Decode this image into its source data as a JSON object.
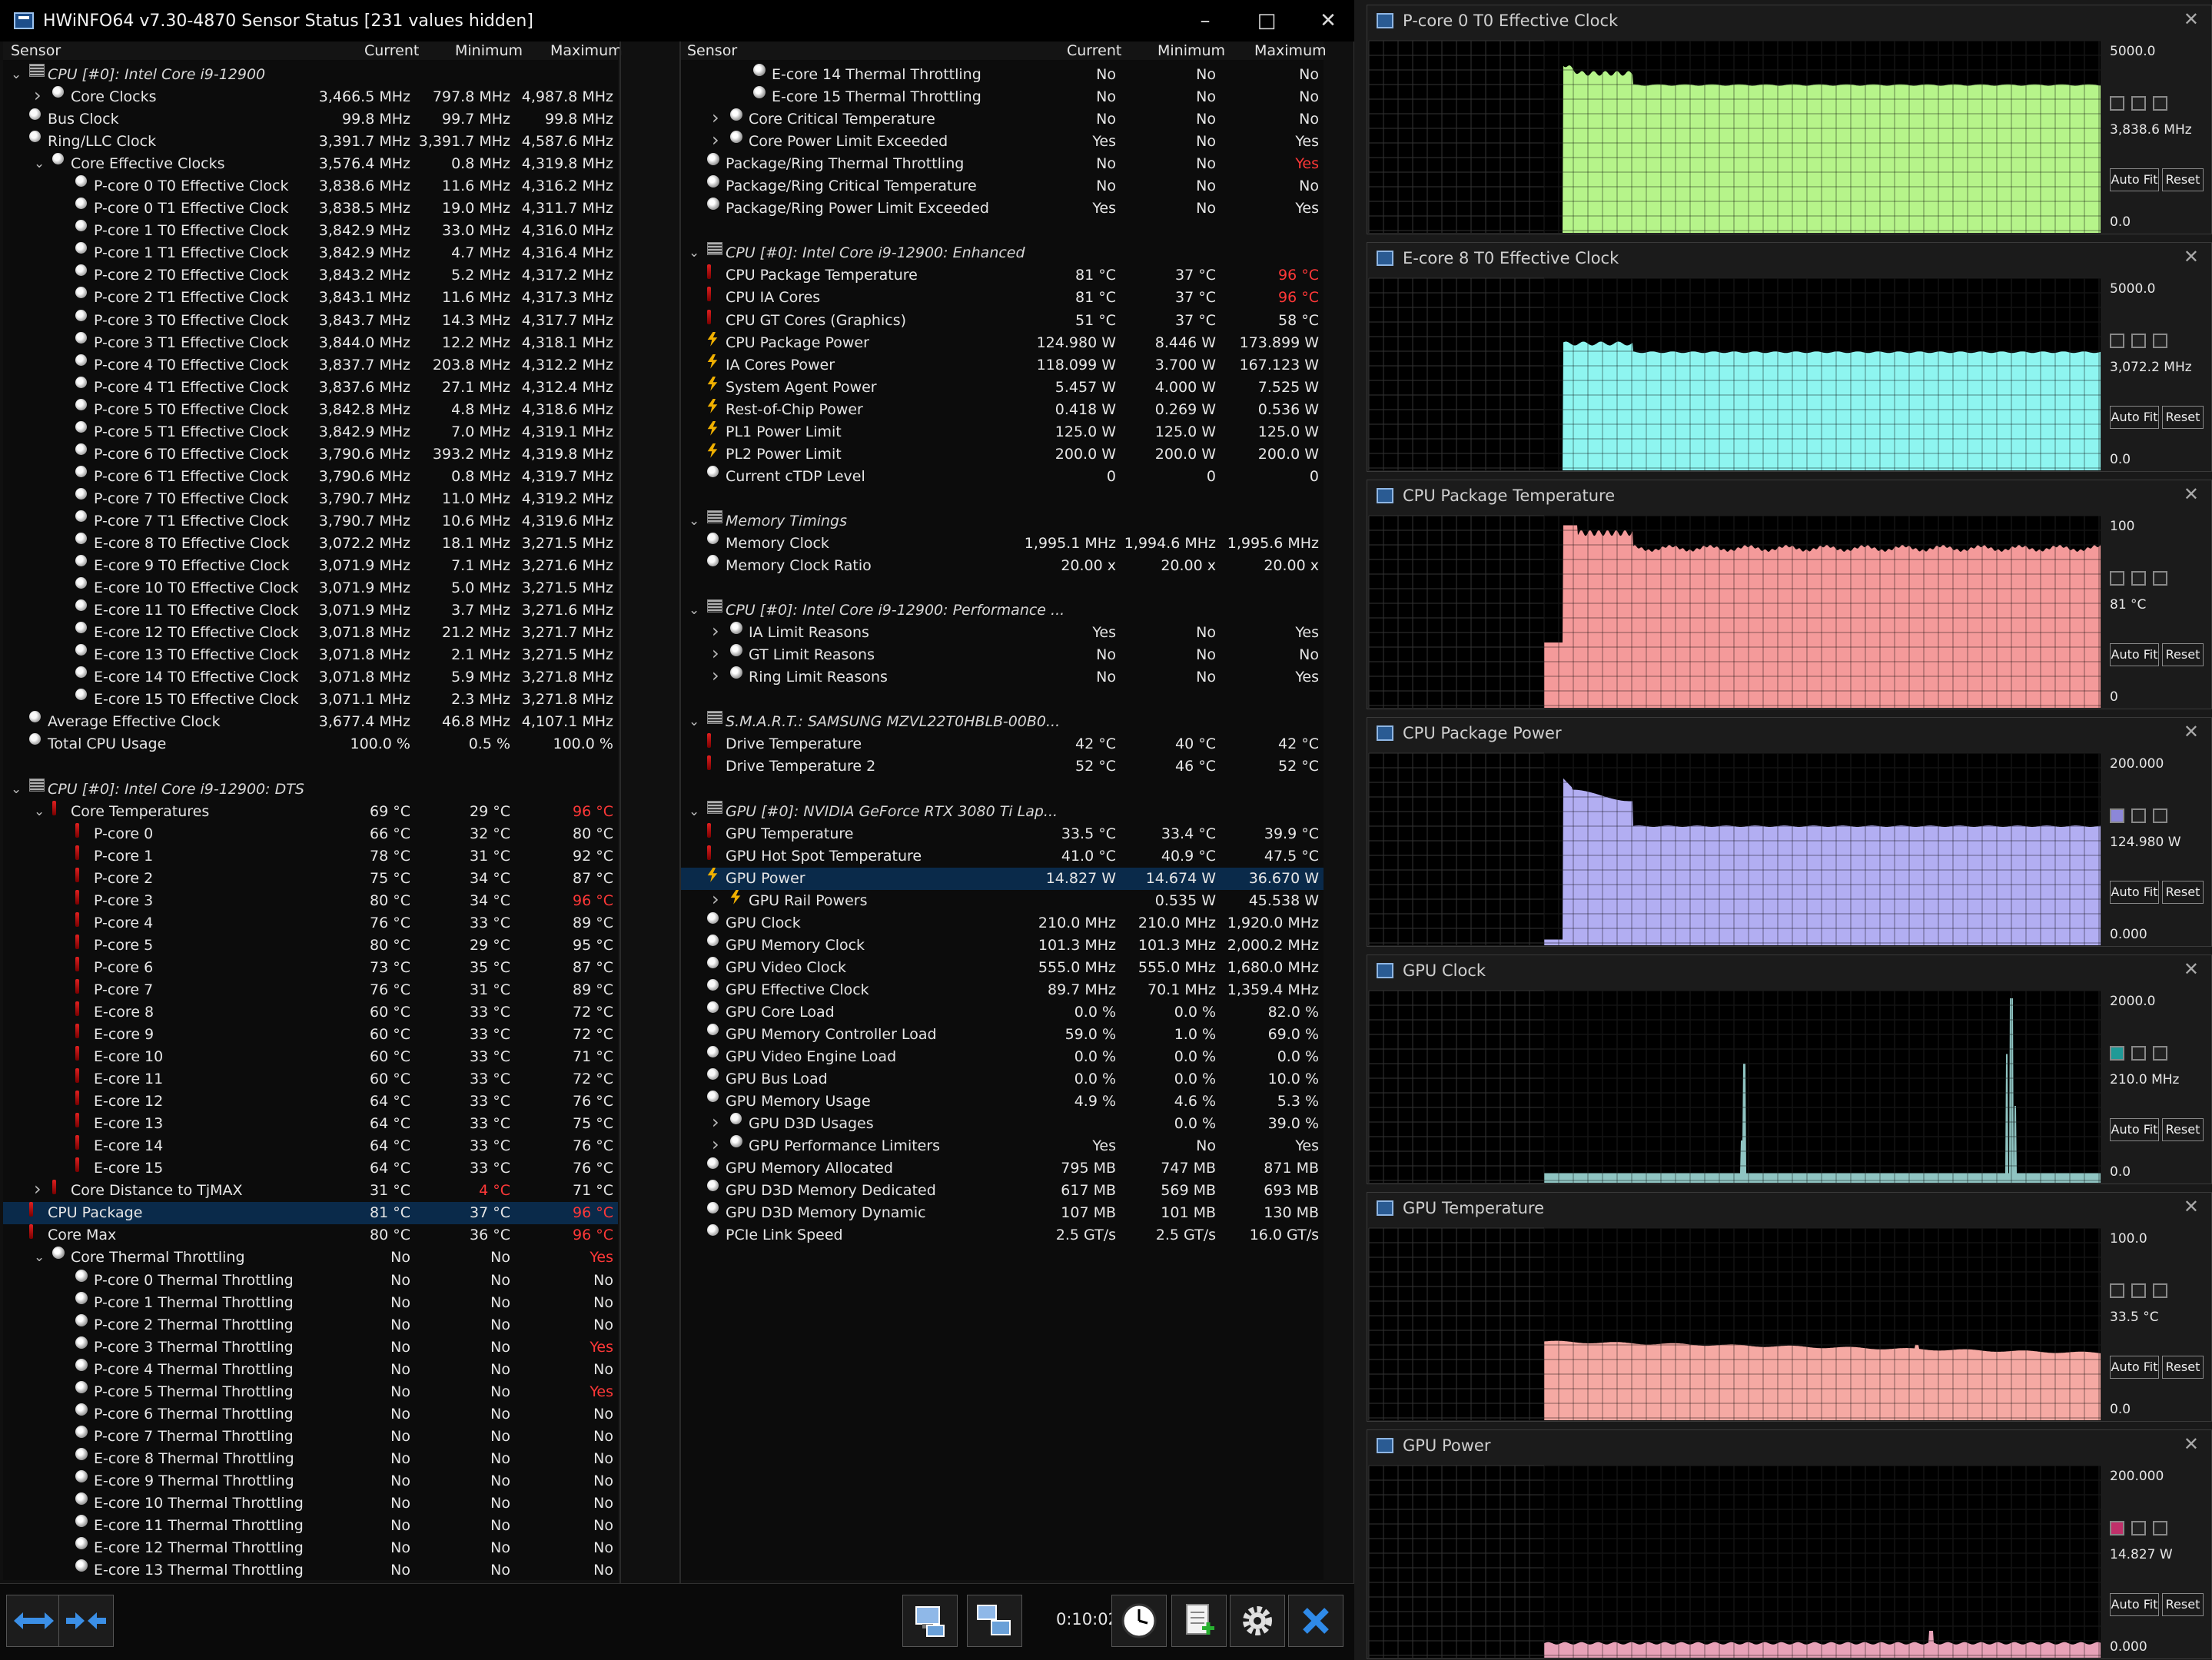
{
  "window": {
    "title": "HWiNFO64 v7.30-4870 Sensor Status [231 values hidden]"
  },
  "columns": {
    "sensor": "Sensor",
    "current": "Current",
    "minimum": "Minimum",
    "maximum": "Maximum"
  },
  "left_rows": [
    {
      "t": "grp",
      "a": "v",
      "ind": 0,
      "name": "CPU [#0]: Intel Core i9-12900"
    },
    {
      "t": "clock",
      "a": ">",
      "ind": 1,
      "name": "Core Clocks",
      "cur": "3,466.5 MHz",
      "min": "797.8 MHz",
      "max": "4,987.8 MHz"
    },
    {
      "t": "clock",
      "ind": 0,
      "name": "Bus Clock",
      "cur": "99.8 MHz",
      "min": "99.7 MHz",
      "max": "99.8 MHz"
    },
    {
      "t": "clock",
      "ind": 0,
      "name": "Ring/LLC Clock",
      "cur": "3,391.7 MHz",
      "min": "3,391.7 MHz",
      "max": "4,587.6 MHz"
    },
    {
      "t": "clock",
      "a": "v",
      "ind": 1,
      "name": "Core Effective Clocks",
      "cur": "3,576.4 MHz",
      "min": "0.8 MHz",
      "max": "4,319.8 MHz"
    },
    {
      "t": "clock",
      "ind": 2,
      "name": "P-core 0 T0 Effective Clock",
      "cur": "3,838.6 MHz",
      "min": "11.6 MHz",
      "max": "4,316.2 MHz"
    },
    {
      "t": "clock",
      "ind": 2,
      "name": "P-core 0 T1 Effective Clock",
      "cur": "3,838.5 MHz",
      "min": "19.0 MHz",
      "max": "4,311.7 MHz"
    },
    {
      "t": "clock",
      "ind": 2,
      "name": "P-core 1 T0 Effective Clock",
      "cur": "3,842.9 MHz",
      "min": "33.0 MHz",
      "max": "4,316.0 MHz"
    },
    {
      "t": "clock",
      "ind": 2,
      "name": "P-core 1 T1 Effective Clock",
      "cur": "3,842.9 MHz",
      "min": "4.7 MHz",
      "max": "4,316.4 MHz"
    },
    {
      "t": "clock",
      "ind": 2,
      "name": "P-core 2 T0 Effective Clock",
      "cur": "3,843.2 MHz",
      "min": "5.2 MHz",
      "max": "4,317.2 MHz"
    },
    {
      "t": "clock",
      "ind": 2,
      "name": "P-core 2 T1 Effective Clock",
      "cur": "3,843.1 MHz",
      "min": "11.6 MHz",
      "max": "4,317.3 MHz"
    },
    {
      "t": "clock",
      "ind": 2,
      "name": "P-core 3 T0 Effective Clock",
      "cur": "3,843.7 MHz",
      "min": "14.3 MHz",
      "max": "4,317.7 MHz"
    },
    {
      "t": "clock",
      "ind": 2,
      "name": "P-core 3 T1 Effective Clock",
      "cur": "3,844.0 MHz",
      "min": "12.2 MHz",
      "max": "4,318.1 MHz"
    },
    {
      "t": "clock",
      "ind": 2,
      "name": "P-core 4 T0 Effective Clock",
      "cur": "3,837.7 MHz",
      "min": "203.8 MHz",
      "max": "4,312.2 MHz"
    },
    {
      "t": "clock",
      "ind": 2,
      "name": "P-core 4 T1 Effective Clock",
      "cur": "3,837.6 MHz",
      "min": "27.1 MHz",
      "max": "4,312.4 MHz"
    },
    {
      "t": "clock",
      "ind": 2,
      "name": "P-core 5 T0 Effective Clock",
      "cur": "3,842.8 MHz",
      "min": "4.8 MHz",
      "max": "4,318.6 MHz"
    },
    {
      "t": "clock",
      "ind": 2,
      "name": "P-core 5 T1 Effective Clock",
      "cur": "3,842.9 MHz",
      "min": "7.0 MHz",
      "max": "4,319.1 MHz"
    },
    {
      "t": "clock",
      "ind": 2,
      "name": "P-core 6 T0 Effective Clock",
      "cur": "3,790.6 MHz",
      "min": "393.2 MHz",
      "max": "4,319.8 MHz"
    },
    {
      "t": "clock",
      "ind": 2,
      "name": "P-core 6 T1 Effective Clock",
      "cur": "3,790.6 MHz",
      "min": "0.8 MHz",
      "max": "4,319.7 MHz"
    },
    {
      "t": "clock",
      "ind": 2,
      "name": "P-core 7 T0 Effective Clock",
      "cur": "3,790.7 MHz",
      "min": "11.0 MHz",
      "max": "4,319.2 MHz"
    },
    {
      "t": "clock",
      "ind": 2,
      "name": "P-core 7 T1 Effective Clock",
      "cur": "3,790.7 MHz",
      "min": "10.6 MHz",
      "max": "4,319.6 MHz"
    },
    {
      "t": "clock",
      "ind": 2,
      "name": "E-core 8 T0 Effective Clock",
      "cur": "3,072.2 MHz",
      "min": "18.1 MHz",
      "max": "3,271.5 MHz"
    },
    {
      "t": "clock",
      "ind": 2,
      "name": "E-core 9 T0 Effective Clock",
      "cur": "3,071.9 MHz",
      "min": "7.1 MHz",
      "max": "3,271.6 MHz"
    },
    {
      "t": "clock",
      "ind": 2,
      "name": "E-core 10 T0 Effective Clock",
      "cur": "3,071.9 MHz",
      "min": "5.0 MHz",
      "max": "3,271.5 MHz"
    },
    {
      "t": "clock",
      "ind": 2,
      "name": "E-core 11 T0 Effective Clock",
      "cur": "3,071.9 MHz",
      "min": "3.7 MHz",
      "max": "3,271.6 MHz"
    },
    {
      "t": "clock",
      "ind": 2,
      "name": "E-core 12 T0 Effective Clock",
      "cur": "3,071.8 MHz",
      "min": "21.2 MHz",
      "max": "3,271.7 MHz"
    },
    {
      "t": "clock",
      "ind": 2,
      "name": "E-core 13 T0 Effective Clock",
      "cur": "3,071.8 MHz",
      "min": "2.1 MHz",
      "max": "3,271.5 MHz"
    },
    {
      "t": "clock",
      "ind": 2,
      "name": "E-core 14 T0 Effective Clock",
      "cur": "3,071.8 MHz",
      "min": "5.9 MHz",
      "max": "3,271.8 MHz"
    },
    {
      "t": "clock",
      "ind": 2,
      "name": "E-core 15 T0 Effective Clock",
      "cur": "3,071.1 MHz",
      "min": "2.3 MHz",
      "max": "3,271.8 MHz"
    },
    {
      "t": "clock",
      "ind": 0,
      "name": "Average Effective Clock",
      "cur": "3,677.4 MHz",
      "min": "46.8 MHz",
      "max": "4,107.1 MHz"
    },
    {
      "t": "clock",
      "ind": 0,
      "name": "Total CPU Usage",
      "cur": "100.0 %",
      "min": "0.5 %",
      "max": "100.0 %"
    },
    {
      "t": "blank"
    },
    {
      "t": "grp",
      "a": "v",
      "ind": 0,
      "name": "CPU [#0]: Intel Core i9-12900: DTS"
    },
    {
      "t": "therm",
      "a": "v",
      "ind": 1,
      "name": "Core Temperatures",
      "cur": "69 °C",
      "min": "29 °C",
      "max": "96 °C",
      "maxred": true
    },
    {
      "t": "therm",
      "ind": 2,
      "name": "P-core 0",
      "cur": "66 °C",
      "min": "32 °C",
      "max": "80 °C"
    },
    {
      "t": "therm",
      "ind": 2,
      "name": "P-core 1",
      "cur": "78 °C",
      "min": "31 °C",
      "max": "92 °C"
    },
    {
      "t": "therm",
      "ind": 2,
      "name": "P-core 2",
      "cur": "75 °C",
      "min": "34 °C",
      "max": "87 °C"
    },
    {
      "t": "therm",
      "ind": 2,
      "name": "P-core 3",
      "cur": "80 °C",
      "min": "34 °C",
      "max": "96 °C",
      "maxred": true
    },
    {
      "t": "therm",
      "ind": 2,
      "name": "P-core 4",
      "cur": "76 °C",
      "min": "33 °C",
      "max": "89 °C"
    },
    {
      "t": "therm",
      "ind": 2,
      "name": "P-core 5",
      "cur": "80 °C",
      "min": "29 °C",
      "max": "95 °C"
    },
    {
      "t": "therm",
      "ind": 2,
      "name": "P-core 6",
      "cur": "73 °C",
      "min": "35 °C",
      "max": "87 °C"
    },
    {
      "t": "therm",
      "ind": 2,
      "name": "P-core 7",
      "cur": "76 °C",
      "min": "31 °C",
      "max": "89 °C"
    },
    {
      "t": "therm",
      "ind": 2,
      "name": "E-core 8",
      "cur": "60 °C",
      "min": "33 °C",
      "max": "72 °C"
    },
    {
      "t": "therm",
      "ind": 2,
      "name": "E-core 9",
      "cur": "60 °C",
      "min": "33 °C",
      "max": "72 °C"
    },
    {
      "t": "therm",
      "ind": 2,
      "name": "E-core 10",
      "cur": "60 °C",
      "min": "33 °C",
      "max": "71 °C"
    },
    {
      "t": "therm",
      "ind": 2,
      "name": "E-core 11",
      "cur": "60 °C",
      "min": "33 °C",
      "max": "72 °C"
    },
    {
      "t": "therm",
      "ind": 2,
      "name": "E-core 12",
      "cur": "64 °C",
      "min": "33 °C",
      "max": "76 °C"
    },
    {
      "t": "therm",
      "ind": 2,
      "name": "E-core 13",
      "cur": "64 °C",
      "min": "33 °C",
      "max": "75 °C"
    },
    {
      "t": "therm",
      "ind": 2,
      "name": "E-core 14",
      "cur": "64 °C",
      "min": "33 °C",
      "max": "76 °C"
    },
    {
      "t": "therm",
      "ind": 2,
      "name": "E-core 15",
      "cur": "64 °C",
      "min": "33 °C",
      "max": "76 °C"
    },
    {
      "t": "therm",
      "a": ">",
      "ind": 1,
      "name": "Core Distance to TjMAX",
      "cur": "31 °C",
      "min": "4 °C",
      "max": "71 °C",
      "minred": true
    },
    {
      "t": "therm",
      "ind": 0,
      "name": "CPU Package",
      "cur": "81 °C",
      "min": "37 °C",
      "max": "96 °C",
      "maxred": true,
      "sel": true
    },
    {
      "t": "therm",
      "ind": 0,
      "name": "Core Max",
      "cur": "80 °C",
      "min": "36 °C",
      "max": "96 °C",
      "maxred": true
    },
    {
      "t": "yes",
      "a": "v",
      "ind": 1,
      "name": "Core Thermal Throttling",
      "cur": "No",
      "min": "No",
      "max": "Yes",
      "maxred": true
    },
    {
      "t": "yes",
      "ind": 2,
      "name": "P-core 0 Thermal Throttling",
      "cur": "No",
      "min": "No",
      "max": "No"
    },
    {
      "t": "yes",
      "ind": 2,
      "name": "P-core 1 Thermal Throttling",
      "cur": "No",
      "min": "No",
      "max": "No"
    },
    {
      "t": "yes",
      "ind": 2,
      "name": "P-core 2 Thermal Throttling",
      "cur": "No",
      "min": "No",
      "max": "No"
    },
    {
      "t": "yes",
      "ind": 2,
      "name": "P-core 3 Thermal Throttling",
      "cur": "No",
      "min": "No",
      "max": "Yes",
      "maxred": true
    },
    {
      "t": "yes",
      "ind": 2,
      "name": "P-core 4 Thermal Throttling",
      "cur": "No",
      "min": "No",
      "max": "No"
    },
    {
      "t": "yes",
      "ind": 2,
      "name": "P-core 5 Thermal Throttling",
      "cur": "No",
      "min": "No",
      "max": "Yes",
      "maxred": true
    },
    {
      "t": "yes",
      "ind": 2,
      "name": "P-core 6 Thermal Throttling",
      "cur": "No",
      "min": "No",
      "max": "No"
    },
    {
      "t": "yes",
      "ind": 2,
      "name": "P-core 7 Thermal Throttling",
      "cur": "No",
      "min": "No",
      "max": "No"
    },
    {
      "t": "yes",
      "ind": 2,
      "name": "E-core 8 Thermal Throttling",
      "cur": "No",
      "min": "No",
      "max": "No"
    },
    {
      "t": "yes",
      "ind": 2,
      "name": "E-core 9 Thermal Throttling",
      "cur": "No",
      "min": "No",
      "max": "No"
    },
    {
      "t": "yes",
      "ind": 2,
      "name": "E-core 10 Thermal Throttling",
      "cur": "No",
      "min": "No",
      "max": "No"
    },
    {
      "t": "yes",
      "ind": 2,
      "name": "E-core 11 Thermal Throttling",
      "cur": "No",
      "min": "No",
      "max": "No"
    },
    {
      "t": "yes",
      "ind": 2,
      "name": "E-core 12 Thermal Throttling",
      "cur": "No",
      "min": "No",
      "max": "No"
    },
    {
      "t": "yes",
      "ind": 2,
      "name": "E-core 13 Thermal Throttling",
      "cur": "No",
      "min": "No",
      "max": "No"
    }
  ],
  "right_rows": [
    {
      "t": "yes",
      "ind": 2,
      "name": "E-core 14 Thermal Throttling",
      "cur": "No",
      "min": "No",
      "max": "No"
    },
    {
      "t": "yes",
      "ind": 2,
      "name": "E-core 15 Thermal Throttling",
      "cur": "No",
      "min": "No",
      "max": "No"
    },
    {
      "t": "yes",
      "a": ">",
      "ind": 1,
      "name": "Core Critical Temperature",
      "cur": "No",
      "min": "No",
      "max": "No"
    },
    {
      "t": "yes",
      "a": ">",
      "ind": 1,
      "name": "Core Power Limit Exceeded",
      "cur": "Yes",
      "min": "No",
      "max": "Yes"
    },
    {
      "t": "yes",
      "ind": 0,
      "name": "Package/Ring Thermal Throttling",
      "cur": "No",
      "min": "No",
      "max": "Yes",
      "maxred": true
    },
    {
      "t": "yes",
      "ind": 0,
      "name": "Package/Ring Critical Temperature",
      "cur": "No",
      "min": "No",
      "max": "No"
    },
    {
      "t": "yes",
      "ind": 0,
      "name": "Package/Ring Power Limit Exceeded",
      "cur": "Yes",
      "min": "No",
      "max": "Yes"
    },
    {
      "t": "blank"
    },
    {
      "t": "grp",
      "a": "v",
      "ind": 0,
      "name": "CPU [#0]: Intel Core i9-12900: Enhanced"
    },
    {
      "t": "therm",
      "ind": 0,
      "name": "CPU Package Temperature",
      "cur": "81 °C",
      "min": "37 °C",
      "max": "96 °C",
      "maxred": true
    },
    {
      "t": "therm",
      "ind": 0,
      "name": "CPU IA Cores",
      "cur": "81 °C",
      "min": "37 °C",
      "max": "96 °C",
      "maxred": true
    },
    {
      "t": "therm",
      "ind": 0,
      "name": "CPU GT Cores (Graphics)",
      "cur": "51 °C",
      "min": "37 °C",
      "max": "58 °C"
    },
    {
      "t": "bolt",
      "ind": 0,
      "name": "CPU Package Power",
      "cur": "124.980 W",
      "min": "8.446 W",
      "max": "173.899 W"
    },
    {
      "t": "bolt",
      "ind": 0,
      "name": "IA Cores Power",
      "cur": "118.099 W",
      "min": "3.700 W",
      "max": "167.123 W"
    },
    {
      "t": "bolt",
      "ind": 0,
      "name": "System Agent Power",
      "cur": "5.457 W",
      "min": "4.000 W",
      "max": "7.525 W"
    },
    {
      "t": "bolt",
      "ind": 0,
      "name": "Rest-of-Chip Power",
      "cur": "0.418 W",
      "min": "0.269 W",
      "max": "0.536 W"
    },
    {
      "t": "bolt",
      "ind": 0,
      "name": "PL1 Power Limit",
      "cur": "125.0 W",
      "min": "125.0 W",
      "max": "125.0 W"
    },
    {
      "t": "bolt",
      "ind": 0,
      "name": "PL2 Power Limit",
      "cur": "200.0 W",
      "min": "200.0 W",
      "max": "200.0 W"
    },
    {
      "t": "clock",
      "ind": 0,
      "name": "Current cTDP Level",
      "cur": "0",
      "min": "0",
      "max": "0"
    },
    {
      "t": "blank"
    },
    {
      "t": "grp",
      "a": "v",
      "ind": 0,
      "name": "Memory Timings"
    },
    {
      "t": "clock",
      "ind": 0,
      "name": "Memory Clock",
      "cur": "1,995.1 MHz",
      "min": "1,994.6 MHz",
      "max": "1,995.6 MHz"
    },
    {
      "t": "clock",
      "ind": 0,
      "name": "Memory Clock Ratio",
      "cur": "20.00 x",
      "min": "20.00 x",
      "max": "20.00 x"
    },
    {
      "t": "blank"
    },
    {
      "t": "grp",
      "a": "v",
      "ind": 0,
      "name": "CPU [#0]: Intel Core i9-12900: Performance ..."
    },
    {
      "t": "yes",
      "a": ">",
      "ind": 1,
      "name": "IA Limit Reasons",
      "cur": "Yes",
      "min": "No",
      "max": "Yes"
    },
    {
      "t": "yes",
      "a": ">",
      "ind": 1,
      "name": "GT Limit Reasons",
      "cur": "No",
      "min": "No",
      "max": "No"
    },
    {
      "t": "yes",
      "a": ">",
      "ind": 1,
      "name": "Ring Limit Reasons",
      "cur": "No",
      "min": "No",
      "max": "Yes"
    },
    {
      "t": "blank"
    },
    {
      "t": "grp",
      "a": "v",
      "ind": 0,
      "name": "S.M.A.R.T.: SAMSUNG MZVL22T0HBLB-00B0..."
    },
    {
      "t": "therm",
      "ind": 0,
      "name": "Drive Temperature",
      "cur": "42 °C",
      "min": "40 °C",
      "max": "42 °C"
    },
    {
      "t": "therm",
      "ind": 0,
      "name": "Drive Temperature 2",
      "cur": "52 °C",
      "min": "46 °C",
      "max": "52 °C"
    },
    {
      "t": "blank"
    },
    {
      "t": "grp",
      "a": "v",
      "ind": 0,
      "name": "GPU [#0]: NVIDIA GeForce RTX 3080 Ti Lap..."
    },
    {
      "t": "therm",
      "ind": 0,
      "name": "GPU Temperature",
      "cur": "33.5 °C",
      "min": "33.4 °C",
      "max": "39.9 °C"
    },
    {
      "t": "therm",
      "ind": 0,
      "name": "GPU Hot Spot Temperature",
      "cur": "41.0 °C",
      "min": "40.9 °C",
      "max": "47.5 °C"
    },
    {
      "t": "bolt",
      "ind": 0,
      "name": "GPU Power",
      "cur": "14.827 W",
      "min": "14.674 W",
      "max": "36.670 W",
      "sel": true
    },
    {
      "t": "bolt",
      "a": ">",
      "ind": 1,
      "name": "GPU Rail Powers",
      "cur": "",
      "min": "0.535 W",
      "max": "45.538 W"
    },
    {
      "t": "clock",
      "ind": 0,
      "name": "GPU Clock",
      "cur": "210.0 MHz",
      "min": "210.0 MHz",
      "max": "1,920.0 MHz"
    },
    {
      "t": "clock",
      "ind": 0,
      "name": "GPU Memory Clock",
      "cur": "101.3 MHz",
      "min": "101.3 MHz",
      "max": "2,000.2 MHz"
    },
    {
      "t": "clock",
      "ind": 0,
      "name": "GPU Video Clock",
      "cur": "555.0 MHz",
      "min": "555.0 MHz",
      "max": "1,680.0 MHz"
    },
    {
      "t": "clock",
      "ind": 0,
      "name": "GPU Effective Clock",
      "cur": "89.7 MHz",
      "min": "70.1 MHz",
      "max": "1,359.4 MHz"
    },
    {
      "t": "clock",
      "ind": 0,
      "name": "GPU Core Load",
      "cur": "0.0 %",
      "min": "0.0 %",
      "max": "82.0 %"
    },
    {
      "t": "clock",
      "ind": 0,
      "name": "GPU Memory Controller Load",
      "cur": "59.0 %",
      "min": "1.0 %",
      "max": "69.0 %"
    },
    {
      "t": "clock",
      "ind": 0,
      "name": "GPU Video Engine Load",
      "cur": "0.0 %",
      "min": "0.0 %",
      "max": "0.0 %"
    },
    {
      "t": "clock",
      "ind": 0,
      "name": "GPU Bus Load",
      "cur": "0.0 %",
      "min": "0.0 %",
      "max": "10.0 %"
    },
    {
      "t": "clock",
      "ind": 0,
      "name": "GPU Memory Usage",
      "cur": "4.9 %",
      "min": "4.6 %",
      "max": "5.3 %"
    },
    {
      "t": "clock",
      "a": ">",
      "ind": 1,
      "name": "GPU D3D Usages",
      "cur": "",
      "min": "0.0 %",
      "max": "39.0 %"
    },
    {
      "t": "yes",
      "a": ">",
      "ind": 1,
      "name": "GPU Performance Limiters",
      "cur": "Yes",
      "min": "No",
      "max": "Yes"
    },
    {
      "t": "clock",
      "ind": 0,
      "name": "GPU Memory Allocated",
      "cur": "795 MB",
      "min": "747 MB",
      "max": "871 MB"
    },
    {
      "t": "clock",
      "ind": 0,
      "name": "GPU D3D Memory Dedicated",
      "cur": "617 MB",
      "min": "569 MB",
      "max": "693 MB"
    },
    {
      "t": "clock",
      "ind": 0,
      "name": "GPU D3D Memory Dynamic",
      "cur": "107 MB",
      "min": "101 MB",
      "max": "130 MB"
    },
    {
      "t": "clock",
      "ind": 0,
      "name": "PCIe Link Speed",
      "cur": "2.5 GT/s",
      "min": "2.5 GT/s",
      "max": "16.0 GT/s"
    }
  ],
  "footer": {
    "timer": "0:10:02"
  },
  "graphs": [
    {
      "title": "P-core 0 T0 Effective Clock",
      "max": "5000.0",
      "cur": "3,838.6 MHz",
      "min": "0.0",
      "color": "#b6f48a",
      "profile": "pclock"
    },
    {
      "title": "E-core 8 T0 Effective Clock",
      "max": "5000.0",
      "cur": "3,072.2 MHz",
      "min": "0.0",
      "color": "#8ef5f0",
      "profile": "eclock"
    },
    {
      "title": "CPU Package Temperature",
      "max": "100",
      "cur": "81 °C",
      "min": "0",
      "color": "#f49a9a",
      "profile": "temp"
    },
    {
      "title": "CPU Package Power",
      "max": "200.000",
      "cur": "124.980 W",
      "min": "0.000",
      "color": "#b2aef2",
      "profile": "power"
    },
    {
      "title": "GPU Clock",
      "max": "2000.0",
      "cur": "210.0 MHz",
      "min": "0.0",
      "color": "#8fc4c2",
      "profile": "gpuclock"
    },
    {
      "title": "GPU Temperature",
      "max": "100.0",
      "cur": "33.5 °C",
      "min": "0.0",
      "color": "#f5a9a3",
      "profile": "gputemp"
    },
    {
      "title": "GPU Power",
      "max": "200.000",
      "cur": "14.827 W",
      "min": "0.000",
      "color": "#e8a2b8",
      "profile": "gpupower"
    }
  ],
  "graph_buttons": {
    "autofit": "Auto Fit",
    "reset": "Reset"
  }
}
